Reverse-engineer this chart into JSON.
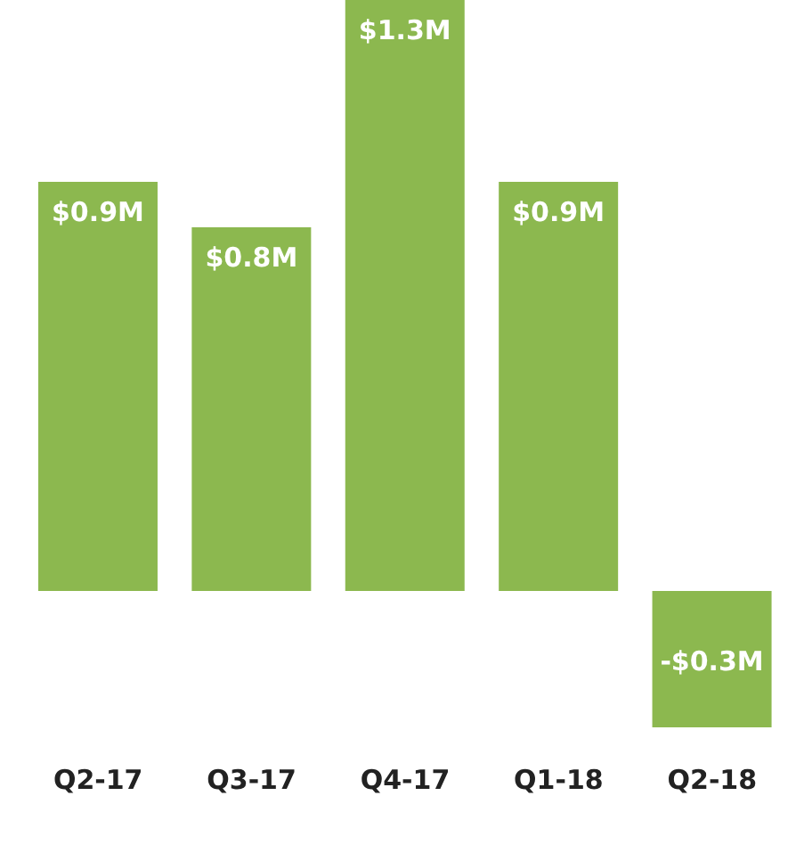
{
  "chart_data": {
    "type": "bar",
    "categories": [
      "Q2-17",
      "Q3-17",
      "Q4-17",
      "Q1-18",
      "Q2-18"
    ],
    "values": [
      0.9,
      0.8,
      1.3,
      0.9,
      -0.3
    ],
    "value_labels": [
      "$0.9M",
      "$0.8M",
      "$1.3M",
      "$0.9M",
      "-$0.3M"
    ],
    "color": "#8cb84f"
  }
}
